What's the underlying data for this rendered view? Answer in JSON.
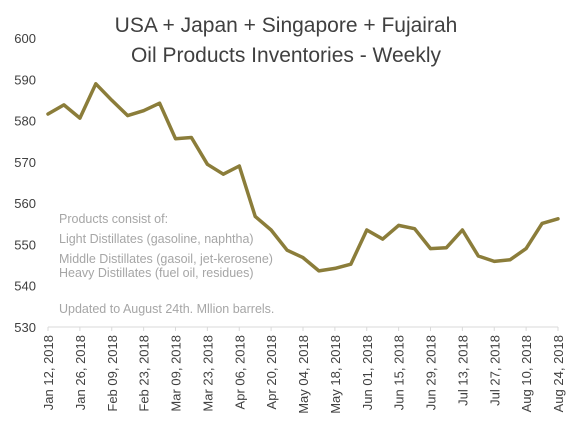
{
  "chart_data": {
    "type": "line",
    "title_lines": [
      "USA + Japan + Singapore + Fujairah",
      "Oil Products Inventories - Weekly"
    ],
    "ylim": [
      530,
      600
    ],
    "yticks": [
      "600",
      "590",
      "580",
      "570",
      "560",
      "550",
      "540",
      "530"
    ],
    "x_tick_labels": [
      "Jan 12, 2018",
      "Jan 26, 2018",
      "Feb 09, 2018",
      "Feb 23, 2018",
      "Mar 09, 2018",
      "Mar 23, 2018",
      "Apr 06, 2018",
      "Apr 20, 2018",
      "May 04, 2018",
      "May 18, 2018",
      "Jun 01, 2018",
      "Jun 15, 2018",
      "Jun 29, 2018",
      "Jul 13, 2018",
      "Jul 27, 2018",
      "Aug 10, 2018",
      "Aug 24, 2018"
    ],
    "x": [
      "2018-01-12",
      "2018-01-19",
      "2018-01-26",
      "2018-02-02",
      "2018-02-09",
      "2018-02-16",
      "2018-02-23",
      "2018-03-02",
      "2018-03-09",
      "2018-03-16",
      "2018-03-23",
      "2018-03-30",
      "2018-04-06",
      "2018-04-13",
      "2018-04-20",
      "2018-04-27",
      "2018-05-04",
      "2018-05-11",
      "2018-05-18",
      "2018-05-25",
      "2018-06-01",
      "2018-06-08",
      "2018-06-15",
      "2018-06-22",
      "2018-06-29",
      "2018-07-06",
      "2018-07-13",
      "2018-07-20",
      "2018-07-27",
      "2018-08-03",
      "2018-08-10",
      "2018-08-17",
      "2018-08-24"
    ],
    "series": [
      {
        "values": [
          581.6,
          583.8,
          580.6,
          588.9,
          584.9,
          581.2,
          582.4,
          584.2,
          575.6,
          575.9,
          569.4,
          567.0,
          569.0,
          556.8,
          553.5,
          548.6,
          546.8,
          543.6,
          544.2,
          545.2,
          553.5,
          551.3,
          554.6,
          553.8,
          549.0,
          549.2,
          553.5,
          547.2,
          545.9,
          546.3,
          549.0,
          555.1,
          556.2
        ],
        "color": "#8b7d3a"
      }
    ],
    "annotation_lines": [
      "Products consist of:",
      "Light Distillates (gasoline, naphtha)",
      "Middle Distillates (gasoil, jet-kerosene)",
      "Heavy Distillates (fuel oil, residues)",
      "",
      "Updated to August 24th. Mllion barrels."
    ],
    "grid": false,
    "legend": "none"
  }
}
